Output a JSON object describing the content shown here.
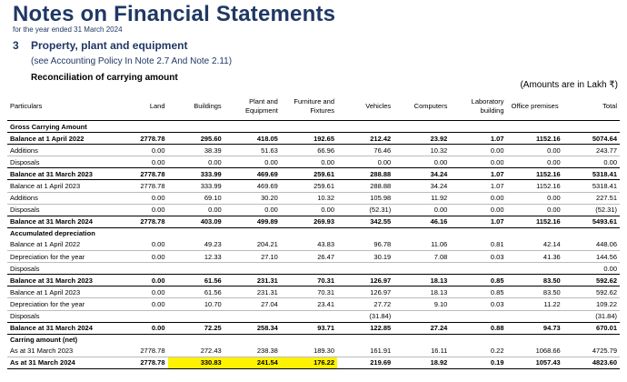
{
  "header": {
    "title": "Notes on Financial Statements",
    "subtitle": "for the year ended 31 March 2024",
    "section_number": "3",
    "section_title": "Property, plant and equipment",
    "see_note": "(see Accounting Policy In Note 2.7 And Note 2.11)",
    "reconciliation": "Reconciliation of carrying amount",
    "amounts_note": "(Amounts are in Lakh ₹)"
  },
  "table": {
    "columns": [
      "Particulars",
      "Land",
      "Buildings",
      "Plant and Equipment",
      "Furniture and Fixtures",
      "Vehicles",
      "Computers",
      "Laboratory building",
      "Office premises",
      "Total"
    ],
    "rows": [
      {
        "label": "Gross Carrying Amount",
        "type": "section"
      },
      {
        "label": "Balance at 1 April 2022",
        "type": "bold",
        "values": [
          "2778.78",
          "295.60",
          "418.05",
          "192.65",
          "212.42",
          "23.92",
          "1.07",
          "1152.16",
          "5074.64"
        ]
      },
      {
        "label": "Additions",
        "type": "thin",
        "values": [
          "0.00",
          "38.39",
          "51.63",
          "66.96",
          "76.46",
          "10.32",
          "0.00",
          "0.00",
          "243.77"
        ]
      },
      {
        "label": "Disposals",
        "type": "pad",
        "values": [
          "0.00",
          "0.00",
          "0.00",
          "0.00",
          "0.00",
          "0.00",
          "0.00",
          "0.00",
          "0.00"
        ]
      },
      {
        "label": "Balance at 31 March 2023",
        "type": "bold",
        "values": [
          "2778.78",
          "333.99",
          "469.69",
          "259.61",
          "288.88",
          "34.24",
          "1.07",
          "1152.16",
          "5318.41"
        ]
      },
      {
        "label": "Balance at 1 April 2023",
        "type": "thin",
        "values": [
          "2778.78",
          "333.99",
          "469.69",
          "259.61",
          "288.88",
          "34.24",
          "1.07",
          "1152.16",
          "5318.41"
        ]
      },
      {
        "label": "Additions",
        "type": "thin",
        "values": [
          "0.00",
          "69.10",
          "30.20",
          "10.32",
          "105.98",
          "11.92",
          "0.00",
          "0.00",
          "227.51"
        ]
      },
      {
        "label": "Disposals",
        "type": "pad",
        "values": [
          "0.00",
          "0.00",
          "0.00",
          "0.00",
          "(52.31)",
          "0.00",
          "0.00",
          "0.00",
          "(52.31)"
        ]
      },
      {
        "label": "Balance at 31 March 2024",
        "type": "bold",
        "values": [
          "2778.78",
          "403.09",
          "499.89",
          "269.93",
          "342.55",
          "46.16",
          "1.07",
          "1152.16",
          "5493.61"
        ]
      },
      {
        "label": "Accumulated depreciation",
        "type": "section"
      },
      {
        "label": "Balance at 1 April 2022",
        "type": "thin",
        "values": [
          "0.00",
          "49.23",
          "204.21",
          "43.83",
          "96.78",
          "11.06",
          "0.81",
          "42.14",
          "448.06"
        ]
      },
      {
        "label": "Depreciation for the year",
        "type": "thin",
        "values": [
          "0.00",
          "12.33",
          "27.10",
          "26.47",
          "30.19",
          "7.08",
          "0.03",
          "41.36",
          "144.56"
        ]
      },
      {
        "label": "Disposals",
        "type": "pad",
        "values": [
          "",
          "",
          "",
          "",
          "",
          "",
          "",
          "",
          "0.00"
        ]
      },
      {
        "label": "Balance at 31 March 2023",
        "type": "bold",
        "values": [
          "0.00",
          "61.56",
          "231.31",
          "70.31",
          "126.97",
          "18.13",
          "0.85",
          "83.50",
          "592.62"
        ]
      },
      {
        "label": "Balance at 1 April 2023",
        "type": "thin",
        "values": [
          "0.00",
          "61.56",
          "231.31",
          "70.31",
          "126.97",
          "18.13",
          "0.85",
          "83.50",
          "592.62"
        ]
      },
      {
        "label": "Depreciation for the year",
        "type": "thin",
        "values": [
          "0.00",
          "10.70",
          "27.04",
          "23.41",
          "27.72",
          "9.10",
          "0.03",
          "11.22",
          "109.22"
        ]
      },
      {
        "label": "Disposals",
        "type": "pad",
        "values": [
          "",
          "",
          "",
          "",
          "(31.84)",
          "",
          "",
          "",
          "(31.84)"
        ]
      },
      {
        "label": "Balance at 31 March 2024",
        "type": "bold",
        "values": [
          "0.00",
          "72.25",
          "258.34",
          "93.71",
          "122.85",
          "27.24",
          "0.88",
          "94.73",
          "670.01"
        ]
      },
      {
        "label": "Carring amount (net)",
        "type": "section"
      },
      {
        "label": "As at 31 March 2023",
        "type": "thin",
        "values": [
          "2778.78",
          "272.43",
          "238.38",
          "189.30",
          "161.91",
          "16.11",
          "0.22",
          "1068.66",
          "4725.79"
        ]
      },
      {
        "label": "As at 31 March 2024",
        "type": "bold",
        "values": [
          "2778.78",
          "330.83",
          "241.54",
          "176.22",
          "219.69",
          "18.92",
          "0.19",
          "1057.43",
          "4823.60"
        ],
        "highlight": [
          1,
          2,
          3
        ]
      }
    ]
  },
  "colors": {
    "title": "#1f3864",
    "highlight": "#fff200"
  }
}
